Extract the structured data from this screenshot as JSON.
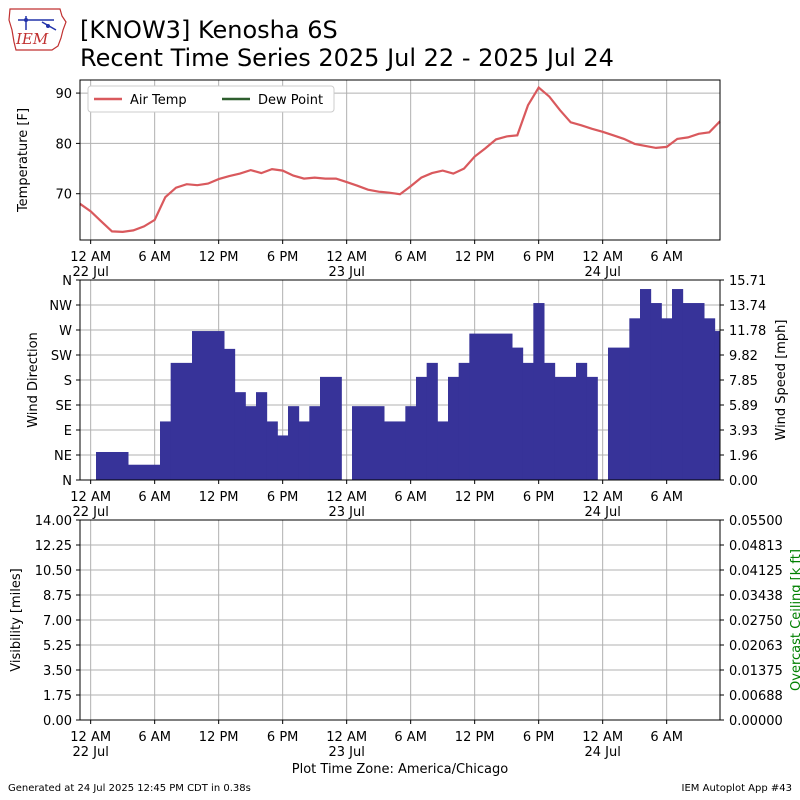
{
  "header": {
    "logo_text": "IEM",
    "title_line1": "[KNOW3] Kenosha 6S",
    "title_line2": "Recent Time Series 2025 Jul 22 - 2025 Jul 24"
  },
  "footer": {
    "generated": "Generated at 24 Jul 2025 12:45 PM CDT in 0.38s",
    "app": "IEM Autoplot App #43"
  },
  "colors": {
    "air_temp": "#d9595d",
    "dew_point": "#2e5e2e",
    "wind_bar": "#373399",
    "grid": "#b0b0b0",
    "ceiling_label": "#008000"
  },
  "chart_data": [
    {
      "type": "line",
      "panel": "temperature",
      "ylabel": "Temperature [F]",
      "ylim": [
        60.8,
        92.6
      ],
      "yticks": [
        70,
        80,
        90
      ],
      "xlim": [
        -1,
        59
      ],
      "xticks": [
        0,
        6,
        12,
        18,
        24,
        30,
        36,
        42,
        48,
        54
      ],
      "xtick_labels": [
        "12 AM",
        "6 AM",
        "12 PM",
        "6 PM",
        "12 AM",
        "6 AM",
        "12 PM",
        "6 PM",
        "12 AM",
        "6 AM"
      ],
      "date_labels": [
        {
          "x": 0,
          "label": "22 Jul"
        },
        {
          "x": 24,
          "label": "23 Jul"
        },
        {
          "x": 48,
          "label": "24 Jul"
        }
      ],
      "grid": true,
      "legend": {
        "placement": "top-left",
        "entries": [
          "Air Temp",
          "Dew Point"
        ]
      },
      "series": [
        {
          "name": "Air Temp",
          "points": [
            [
              -1,
              68.0
            ],
            [
              0,
              66.5
            ],
            [
              1,
              64.5
            ],
            [
              2,
              62.5
            ],
            [
              3,
              62.4
            ],
            [
              4,
              62.7
            ],
            [
              5,
              63.5
            ],
            [
              6,
              64.8
            ],
            [
              7,
              69.3
            ],
            [
              8,
              71.2
            ],
            [
              9,
              71.9
            ],
            [
              10,
              71.7
            ],
            [
              11,
              72.0
            ],
            [
              12,
              72.9
            ],
            [
              13,
              73.5
            ],
            [
              14,
              74.0
            ],
            [
              15,
              74.7
            ],
            [
              16,
              74.1
            ],
            [
              17,
              74.9
            ],
            [
              18,
              74.6
            ],
            [
              19,
              73.6
            ],
            [
              20,
              73.0
            ],
            [
              21,
              73.2
            ],
            [
              22,
              73.0
            ],
            [
              23,
              73.0
            ],
            [
              24,
              72.3
            ],
            [
              25,
              71.6
            ],
            [
              26,
              70.8
            ],
            [
              27,
              70.4
            ],
            [
              28,
              70.2
            ],
            [
              29,
              69.9
            ],
            [
              30,
              71.5
            ],
            [
              31,
              73.2
            ],
            [
              32,
              74.1
            ],
            [
              33,
              74.6
            ],
            [
              34,
              74.0
            ],
            [
              35,
              75.0
            ],
            [
              36,
              77.4
            ],
            [
              37,
              79.0
            ],
            [
              38,
              80.8
            ],
            [
              39,
              81.4
            ],
            [
              40,
              81.6
            ],
            [
              41,
              87.6
            ],
            [
              42,
              91.1
            ],
            [
              43,
              89.3
            ],
            [
              44,
              86.6
            ],
            [
              45,
              84.2
            ],
            [
              46,
              83.6
            ],
            [
              47,
              82.9
            ],
            [
              48,
              82.3
            ],
            [
              49,
              81.6
            ],
            [
              50,
              80.9
            ],
            [
              51,
              79.9
            ],
            [
              52,
              79.5
            ],
            [
              53,
              79.1
            ],
            [
              54,
              79.3
            ],
            [
              55,
              80.9
            ],
            [
              56,
              81.2
            ],
            [
              57,
              81.9
            ],
            [
              58,
              82.2
            ],
            [
              59,
              84.4
            ]
          ]
        },
        {
          "name": "Dew Point",
          "points": []
        }
      ]
    },
    {
      "type": "bar",
      "panel": "wind",
      "ylabel": "Wind Direction",
      "ylabel_right": "Wind Speed [mph]",
      "direction_ticks": [
        "N",
        "NE",
        "E",
        "SE",
        "S",
        "SW",
        "W",
        "NW",
        "N"
      ],
      "speed_ticks": [
        "0.00",
        "1.96",
        "3.93",
        "5.89",
        "7.85",
        "9.82",
        "11.78",
        "13.74",
        "15.71"
      ],
      "ylim": [
        0,
        15.71
      ],
      "xlim": [
        -1,
        59
      ],
      "xticks": [
        0,
        6,
        12,
        18,
        24,
        30,
        36,
        42,
        48,
        54
      ],
      "xtick_labels": [
        "12 AM",
        "6 AM",
        "12 PM",
        "6 PM",
        "12 AM",
        "6 AM",
        "12 PM",
        "6 PM",
        "12 AM",
        "6 AM"
      ],
      "date_labels": [
        {
          "x": 0,
          "label": "22 Jul"
        },
        {
          "x": 24,
          "label": "23 Jul"
        },
        {
          "x": 48,
          "label": "24 Jul"
        }
      ],
      "grid": true,
      "bars": [
        [
          0.5,
          3.5,
          2.2
        ],
        [
          3.5,
          6.5,
          1.2
        ],
        [
          6.5,
          7.5,
          4.6
        ],
        [
          7.5,
          9.5,
          9.2
        ],
        [
          9.5,
          12.5,
          11.7
        ],
        [
          12.5,
          13.5,
          10.3
        ],
        [
          13.5,
          14.5,
          6.9
        ],
        [
          14.5,
          15.5,
          5.8
        ],
        [
          15.5,
          16.5,
          6.9
        ],
        [
          16.5,
          17.5,
          4.6
        ],
        [
          17.5,
          18.5,
          3.5
        ],
        [
          18.5,
          19.5,
          5.8
        ],
        [
          19.5,
          20.5,
          4.6
        ],
        [
          20.5,
          21.5,
          5.8
        ],
        [
          21.5,
          23.5,
          8.1
        ],
        [
          24.5,
          27.5,
          5.8
        ],
        [
          27.5,
          29.5,
          4.6
        ],
        [
          29.5,
          30.5,
          5.8
        ],
        [
          30.5,
          31.5,
          8.1
        ],
        [
          31.5,
          32.5,
          9.2
        ],
        [
          32.5,
          33.5,
          4.6
        ],
        [
          33.5,
          34.5,
          8.1
        ],
        [
          34.5,
          35.5,
          9.2
        ],
        [
          35.5,
          39.5,
          11.5
        ],
        [
          39.5,
          40.5,
          10.4
        ],
        [
          40.5,
          41.5,
          9.2
        ],
        [
          41.5,
          42.5,
          13.9
        ],
        [
          42.5,
          43.5,
          9.2
        ],
        [
          43.5,
          45.5,
          8.1
        ],
        [
          45.5,
          46.5,
          9.2
        ],
        [
          46.5,
          47.5,
          8.1
        ],
        [
          48.5,
          50.5,
          10.4
        ],
        [
          50.5,
          51.5,
          12.7
        ],
        [
          51.5,
          52.5,
          15.0
        ],
        [
          52.5,
          53.5,
          13.9
        ],
        [
          53.5,
          54.5,
          12.7
        ],
        [
          54.5,
          55.5,
          15.0
        ],
        [
          55.5,
          57.5,
          13.9
        ],
        [
          57.5,
          58.5,
          12.7
        ],
        [
          58.5,
          59,
          11.7
        ]
      ]
    },
    {
      "type": "line",
      "panel": "visibility",
      "ylabel": "Visibility [miles]",
      "ylabel_right": "Overcast Ceiling [k ft]",
      "ylim": [
        0,
        14
      ],
      "left_ticks": [
        "0.00",
        "1.75",
        "3.50",
        "5.25",
        "7.00",
        "8.75",
        "10.50",
        "12.25",
        "14.00"
      ],
      "right_ticks": [
        "0.00000",
        "0.00688",
        "0.01375",
        "0.02063",
        "0.02750",
        "0.03438",
        "0.04125",
        "0.04813",
        "0.05500"
      ],
      "xlim": [
        -1,
        59
      ],
      "xticks": [
        0,
        6,
        12,
        18,
        24,
        30,
        36,
        42,
        48,
        54
      ],
      "xtick_labels": [
        "12 AM",
        "6 AM",
        "12 PM",
        "6 PM",
        "12 AM",
        "6 AM",
        "12 PM",
        "6 PM",
        "12 AM",
        "6 AM"
      ],
      "date_labels": [
        {
          "x": 0,
          "label": "22 Jul"
        },
        {
          "x": 24,
          "label": "23 Jul"
        },
        {
          "x": 48,
          "label": "24 Jul"
        }
      ],
      "xlabel": "Plot Time Zone: America/Chicago",
      "grid": true,
      "series": []
    }
  ]
}
